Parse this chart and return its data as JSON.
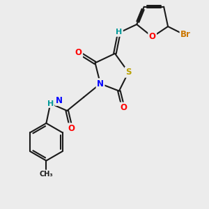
{
  "bg_color": "#ececec",
  "bond_color": "#1a1a1a",
  "bond_width": 1.5,
  "dbo": 0.07,
  "atom_colors": {
    "O": "#ff0000",
    "N": "#0000ff",
    "S": "#b8a000",
    "Br": "#cc7700",
    "H": "#009999",
    "C": "#1a1a1a"
  },
  "fs": 8.5
}
